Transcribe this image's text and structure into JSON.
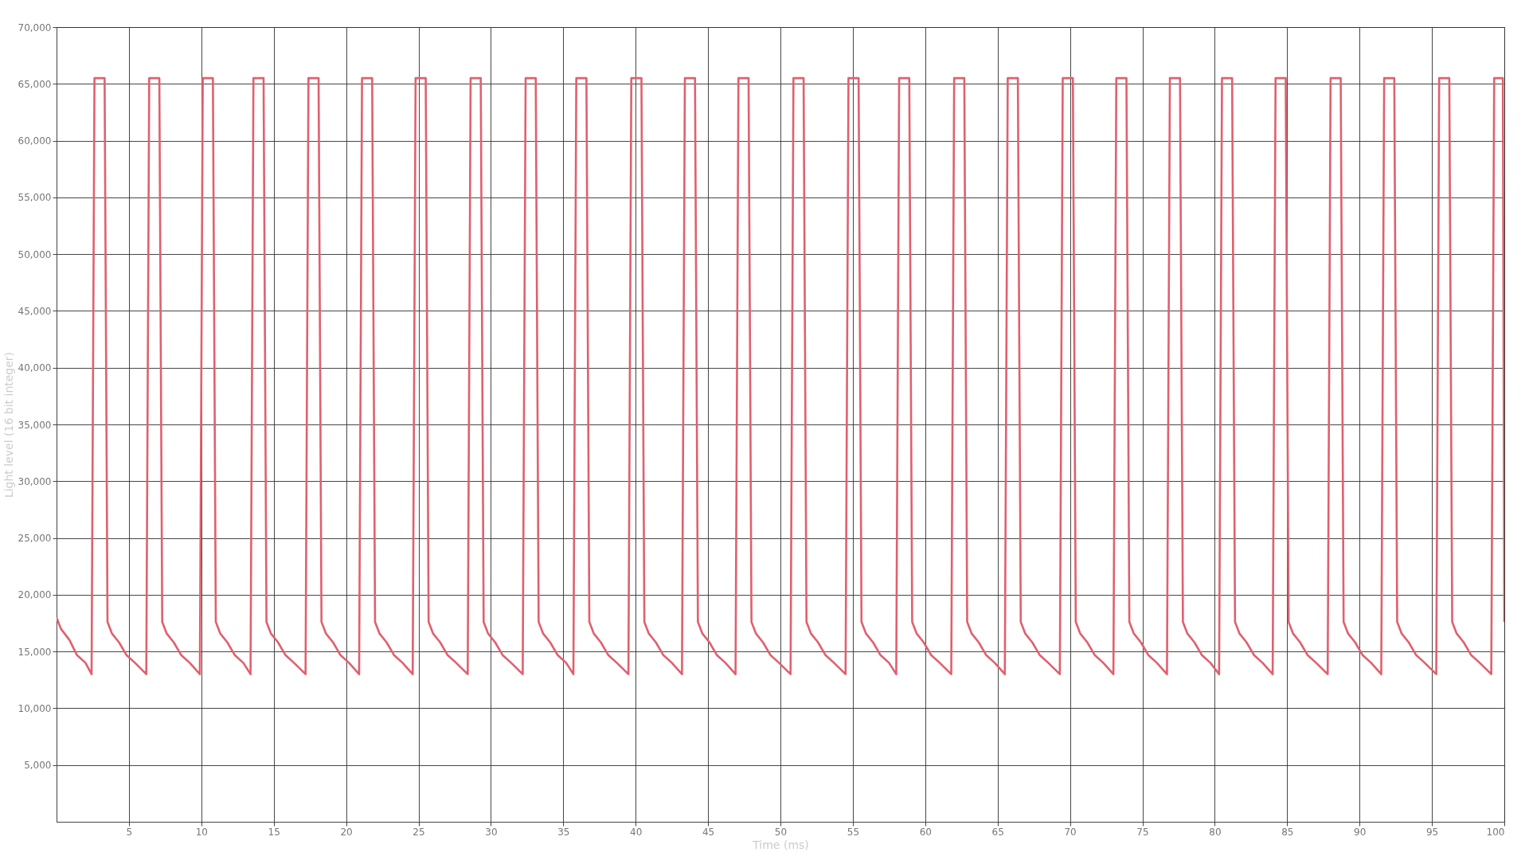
{
  "chart_data": {
    "type": "line",
    "xlabel": "Time (ms)",
    "ylabel": "Light level (16 bit integer)",
    "xlim": [
      0,
      100
    ],
    "ylim": [
      0,
      70000
    ],
    "xticks": [
      5,
      10,
      15,
      20,
      25,
      30,
      35,
      40,
      45,
      50,
      55,
      60,
      65,
      70,
      75,
      80,
      85,
      90,
      95,
      100
    ],
    "yticks": [
      {
        "value": 5000,
        "label": "5,000"
      },
      {
        "value": 10000,
        "label": "10,000"
      },
      {
        "value": 15000,
        "label": "15,000"
      },
      {
        "value": 20000,
        "label": "20,000"
      },
      {
        "value": 25000,
        "label": "25,000"
      },
      {
        "value": 30000,
        "label": "30,000"
      },
      {
        "value": 35000,
        "label": "35,000"
      },
      {
        "value": 40000,
        "label": "40,000"
      },
      {
        "value": 45000,
        "label": "45,000"
      },
      {
        "value": 50000,
        "label": "50,000"
      },
      {
        "value": 55000,
        "label": "55,000"
      },
      {
        "value": 60000,
        "label": "60,000"
      },
      {
        "value": 65000,
        "label": "65,000"
      },
      {
        "value": 70000,
        "label": "70,000"
      }
    ],
    "grid": true,
    "marker": "none",
    "line_style": "solid",
    "x": [
      0,
      0.3,
      0.9,
      1.4,
      2.0,
      2.42,
      2.62,
      3.32,
      3.52,
      3.82,
      4.32,
      4.82,
      5.42,
      6.2,
      6.4,
      7.1,
      7.3,
      7.6,
      8.1,
      8.6,
      9.2,
      9.9,
      10.1,
      10.8,
      11.0,
      11.3,
      11.8,
      12.3,
      12.9,
      13.4,
      13.6,
      14.3,
      14.5,
      14.8,
      15.3,
      15.8,
      16.4,
      17.2,
      17.4,
      18.1,
      18.3,
      18.6,
      19.1,
      19.6,
      20.2,
      20.9,
      21.1,
      21.8,
      22.0,
      22.3,
      22.8,
      23.3,
      23.9,
      24.6,
      24.8,
      25.5,
      25.7,
      26.0,
      26.5,
      27.0,
      27.6,
      28.4,
      28.6,
      29.3,
      29.5,
      29.8,
      30.3,
      30.8,
      31.4,
      32.2,
      32.4,
      33.1,
      33.3,
      33.6,
      34.1,
      34.6,
      35.2,
      35.7,
      35.9,
      36.6,
      36.8,
      37.1,
      37.6,
      38.1,
      38.7,
      39.5,
      39.7,
      40.4,
      40.6,
      40.9,
      41.4,
      41.9,
      42.5,
      43.2,
      43.4,
      44.1,
      44.3,
      44.6,
      45.1,
      45.6,
      46.2,
      46.9,
      47.1,
      47.8,
      48.0,
      48.3,
      48.8,
      49.3,
      49.9,
      50.7,
      50.9,
      51.6,
      51.8,
      52.1,
      52.6,
      53.1,
      53.7,
      54.5,
      54.7,
      55.4,
      55.6,
      55.9,
      56.4,
      56.9,
      57.5,
      58.0,
      58.2,
      58.9,
      59.1,
      59.4,
      59.9,
      60.4,
      61.0,
      61.8,
      62.0,
      62.7,
      62.9,
      63.2,
      63.7,
      64.2,
      64.8,
      65.5,
      65.7,
      66.4,
      66.6,
      66.9,
      67.4,
      67.9,
      68.5,
      69.3,
      69.5,
      70.2,
      70.4,
      70.7,
      71.2,
      71.7,
      72.3,
      73.0,
      73.2,
      73.9,
      74.1,
      74.4,
      74.9,
      75.4,
      76.0,
      76.7,
      76.9,
      77.6,
      77.8,
      78.1,
      78.6,
      79.1,
      79.7,
      80.3,
      80.5,
      81.2,
      81.4,
      81.7,
      82.2,
      82.7,
      83.3,
      84.0,
      84.2,
      84.9,
      85.1,
      85.4,
      85.9,
      86.4,
      87.0,
      87.8,
      88.0,
      88.7,
      88.9,
      89.2,
      89.7,
      90.2,
      90.8,
      91.5,
      91.7,
      92.4,
      92.6,
      92.9,
      93.4,
      93.9,
      94.5,
      95.3,
      95.5,
      96.2,
      96.4,
      96.7,
      97.2,
      97.7,
      98.3,
      99.1,
      99.3,
      99.9,
      100
    ],
    "series": [
      {
        "color": "#e0606e",
        "values": [
          18000,
          17000,
          16000,
          14700,
          14000,
          13000,
          65500,
          65500,
          17600,
          16600,
          15800,
          14700,
          14000,
          13000,
          65500,
          65500,
          17600,
          16600,
          15800,
          14700,
          14000,
          13000,
          65500,
          65500,
          17600,
          16600,
          15800,
          14700,
          14000,
          13000,
          65500,
          65500,
          17600,
          16600,
          15800,
          14700,
          14000,
          13000,
          65500,
          65500,
          17600,
          16600,
          15800,
          14700,
          14000,
          13000,
          65500,
          65500,
          17600,
          16600,
          15800,
          14700,
          14000,
          13000,
          65500,
          65500,
          17600,
          16600,
          15800,
          14700,
          14000,
          13000,
          65500,
          65500,
          17600,
          16600,
          15800,
          14700,
          14000,
          13000,
          65500,
          65500,
          17600,
          16600,
          15800,
          14700,
          14000,
          13000,
          65500,
          65500,
          17600,
          16600,
          15800,
          14700,
          14000,
          13000,
          65500,
          65500,
          17600,
          16600,
          15800,
          14700,
          14000,
          13000,
          65500,
          65500,
          17600,
          16600,
          15800,
          14700,
          14000,
          13000,
          65500,
          65500,
          17600,
          16600,
          15800,
          14700,
          14000,
          13000,
          65500,
          65500,
          17600,
          16600,
          15800,
          14700,
          14000,
          13000,
          65500,
          65500,
          17600,
          16600,
          15800,
          14700,
          14000,
          13000,
          65500,
          65500,
          17600,
          16600,
          15800,
          14700,
          14000,
          13000,
          65500,
          65500,
          17600,
          16600,
          15800,
          14700,
          14000,
          13000,
          65500,
          65500,
          17600,
          16600,
          15800,
          14700,
          14000,
          13000,
          65500,
          65500,
          17600,
          16600,
          15800,
          14700,
          14000,
          13000,
          65500,
          65500,
          17600,
          16600,
          15800,
          14700,
          14000,
          13000,
          65500,
          65500,
          17600,
          16600,
          15800,
          14700,
          14000,
          13000,
          65500,
          65500,
          17600,
          16600,
          15800,
          14700,
          14000,
          13000,
          65500,
          65500,
          17600,
          16600,
          15800,
          14700,
          14000,
          13000,
          65500,
          65500,
          17600,
          16600,
          15800,
          14700,
          14000,
          13000,
          65500,
          65500,
          17600,
          16600,
          15800,
          14700,
          14000,
          13000,
          65500,
          65500,
          17600,
          16600,
          15800,
          14700,
          14000,
          13000,
          65500,
          65500,
          17600
        ]
      }
    ]
  }
}
